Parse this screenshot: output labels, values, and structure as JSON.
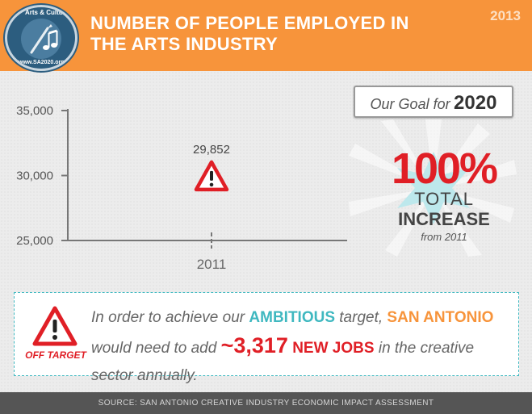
{
  "header": {
    "title_line1": "NUMBER OF PEOPLE EMPLOYED IN",
    "title_line2": "THE ARTS INDUSTRY",
    "year": "2013",
    "logo": {
      "top_text": "Arts & Culture",
      "bottom_text": "www.SA2020.org",
      "icon": "brush-and-music-note-icon"
    }
  },
  "chart_data": {
    "type": "scatter",
    "x": [
      "2011"
    ],
    "values": [
      29852
    ],
    "data_labels": [
      "29,852"
    ],
    "yticks": [
      "25,000",
      "30,000",
      "35,000"
    ],
    "ylim": [
      25000,
      35000
    ],
    "marker": "warning-triangle-icon",
    "grid": false
  },
  "goal": {
    "label": "Our Goal for",
    "year": "2020",
    "percent": "100%",
    "total": "TOTAL",
    "increase": "INCREASE",
    "from": "from 2011"
  },
  "message": {
    "off_target": "OFF TARGET",
    "part1": "In order to achieve our ",
    "ambitious": "AMBITIOUS",
    "part2": " target, ",
    "city": "SAN ANTONIO",
    "part3": " would need to add ",
    "jobs_number": "~3,317",
    "new_jobs": "NEW JOBS",
    "part4": " in the creative sector annually."
  },
  "footer": {
    "source": "SOURCE: SAN ANTONIO CREATIVE INDUSTRY ECONOMIC IMPACT ASSESSMENT"
  },
  "colors": {
    "header_bg": "#f7943b",
    "accent_red": "#e01f26",
    "accent_teal": "#3fb8c0",
    "footer_bg": "#555555"
  }
}
